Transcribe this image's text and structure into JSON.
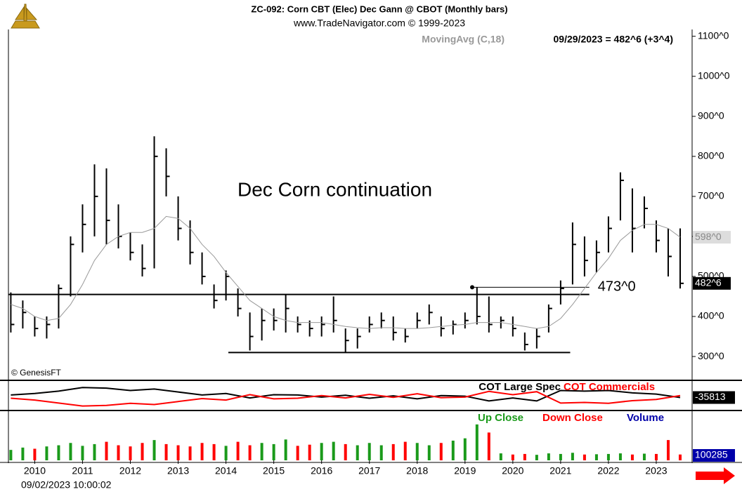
{
  "chart_data": [
    {
      "type": "ohlc",
      "title": "ZC-092:  Corn CBT (Elec) Dec Gann @ CBOT  (Monthly bars)",
      "subtitle": "www.TradeNavigator.com © 1999-2023",
      "quote": "09/29/2023 = 482^6 (+3^4)",
      "annotation": "Dec Corn continuation",
      "credit": "© GenesisFT",
      "timestamp": "09/02/2023 10:00:02",
      "color": "#000000",
      "x": [
        2009.5,
        2009.75,
        2010,
        2010.25,
        2010.5,
        2010.75,
        2011,
        2011.25,
        2011.5,
        2011.75,
        2012,
        2012.25,
        2012.5,
        2012.75,
        2013,
        2013.25,
        2013.5,
        2013.75,
        2014,
        2014.25,
        2014.5,
        2014.75,
        2015,
        2015.25,
        2015.5,
        2015.75,
        2016,
        2016.25,
        2016.5,
        2016.75,
        2017,
        2017.25,
        2017.5,
        2017.75,
        2018,
        2018.25,
        2018.5,
        2018.75,
        2019,
        2019.25,
        2019.5,
        2019.75,
        2020,
        2020.25,
        2020.5,
        2020.75,
        2021,
        2021.25,
        2021.5,
        2021.75,
        2022,
        2022.25,
        2022.5,
        2022.75,
        2023,
        2023.25,
        2023.5
      ],
      "high": [
        460,
        440,
        400,
        400,
        480,
        600,
        680,
        780,
        770,
        680,
        610,
        580,
        850,
        820,
        700,
        640,
        560,
        480,
        515,
        470,
        410,
        420,
        420,
        455,
        400,
        390,
        400,
        450,
        370,
        370,
        400,
        410,
        400,
        370,
        410,
        430,
        400,
        390,
        410,
        473,
        450,
        400,
        400,
        360,
        370,
        430,
        490,
        635,
        600,
        590,
        650,
        760,
        720,
        700,
        640,
        620,
        620
      ],
      "low": [
        360,
        370,
        350,
        345,
        370,
        450,
        560,
        600,
        580,
        570,
        540,
        500,
        520,
        700,
        590,
        530,
        480,
        420,
        440,
        400,
        315,
        340,
        365,
        360,
        360,
        350,
        350,
        360,
        310,
        320,
        360,
        370,
        340,
        335,
        370,
        380,
        350,
        355,
        370,
        380,
        360,
        370,
        350,
        315,
        320,
        360,
        430,
        480,
        500,
        510,
        560,
        640,
        560,
        620,
        560,
        500,
        470
      ],
      "close": [
        380,
        410,
        370,
        380,
        470,
        580,
        630,
        700,
        640,
        600,
        560,
        520,
        800,
        750,
        620,
        560,
        500,
        440,
        500,
        420,
        350,
        390,
        390,
        420,
        380,
        370,
        380,
        390,
        340,
        350,
        380,
        390,
        360,
        350,
        390,
        410,
        370,
        380,
        390,
        400,
        380,
        390,
        370,
        330,
        350,
        420,
        470,
        580,
        540,
        560,
        620,
        740,
        620,
        670,
        590,
        550,
        482.75
      ],
      "moving_average": {
        "name": "MovingAvg (C,18)",
        "color": "#999999",
        "values": [
          430,
          420,
          400,
          390,
          395,
          430,
          480,
          540,
          580,
          600,
          610,
          610,
          620,
          650,
          645,
          620,
          580,
          550,
          510,
          475,
          440,
          420,
          400,
          390,
          385,
          385,
          385,
          380,
          375,
          372,
          370,
          372,
          372,
          370,
          370,
          372,
          375,
          378,
          380,
          385,
          385,
          385,
          380,
          375,
          370,
          375,
          395,
          430,
          470,
          510,
          545,
          590,
          615,
          630,
          630,
          620,
          598
        ]
      },
      "levels": [
        {
          "value": 455,
          "x": [
            2009.45,
            2021.6
          ]
        },
        {
          "value": 310,
          "x": [
            2014.05,
            2021.2
          ]
        },
        {
          "value": 473,
          "x": [
            2019.15,
            2021.6
          ],
          "label": "473^0"
        }
      ],
      "ma_marker": {
        "value": 598,
        "label": "598^0"
      },
      "last_marker": {
        "value": 482.75,
        "label": "482^6"
      },
      "xlim": [
        2009.45,
        2023.75
      ],
      "xticks": [
        2010,
        2011,
        2012,
        2013,
        2014,
        2015,
        2016,
        2017,
        2018,
        2019,
        2020,
        2021,
        2022,
        2023
      ],
      "ylim": [
        244,
        1117
      ],
      "yticks": [
        {
          "value": 300,
          "label": "300^0"
        },
        {
          "value": 400,
          "label": "400^0"
        },
        {
          "value": 500,
          "label": "500^0"
        },
        {
          "value": 600,
          "label": "600^0"
        },
        {
          "value": 700,
          "label": "700^0"
        },
        {
          "value": 800,
          "label": "800^0"
        },
        {
          "value": 900,
          "label": "900^0"
        },
        {
          "value": 1000,
          "label": "1000^0"
        },
        {
          "value": 1100,
          "label": "1100^0"
        }
      ]
    },
    {
      "type": "line",
      "x": [
        2009.5,
        2010,
        2010.5,
        2011,
        2011.5,
        2012,
        2012.5,
        2013,
        2013.5,
        2014,
        2014.5,
        2015,
        2015.5,
        2016,
        2016.5,
        2017,
        2017.5,
        2018,
        2018.5,
        2019,
        2019.5,
        2020,
        2020.5,
        2021,
        2021.5,
        2022,
        2022.5,
        2023,
        2023.5
      ],
      "ylim": [
        -400000,
        400000
      ],
      "series": [
        {
          "name": "COT Large Spec",
          "color": "#000000",
          "values": [
            50000,
            100000,
            180000,
            300000,
            280000,
            200000,
            250000,
            150000,
            50000,
            100000,
            -50000,
            60000,
            50000,
            -20000,
            40000,
            -60000,
            20000,
            -80000,
            30000,
            10000,
            -150000,
            -50000,
            -150000,
            200000,
            180000,
            200000,
            120000,
            80000,
            -35813
          ]
        },
        {
          "name": "COT Commercials",
          "color": "#ff0000",
          "values": [
            -60000,
            -120000,
            -220000,
            -320000,
            -300000,
            -230000,
            -270000,
            -170000,
            -70000,
            -120000,
            60000,
            -80000,
            -60000,
            30000,
            -50000,
            70000,
            -30000,
            90000,
            -40000,
            -20000,
            170000,
            60000,
            160000,
            -220000,
            -200000,
            -230000,
            -140000,
            -100000,
            30000
          ]
        }
      ]
    },
    {
      "type": "bar",
      "up_label": "Up Close",
      "down_label": "Down Close",
      "title": "Volume",
      "up_color": "#1a9a1a",
      "down_color": "#ff0000",
      "title_color": "#0000aa",
      "ylim": [
        0,
        800000
      ],
      "values": [
        180000,
        220000,
        200000,
        240000,
        260000,
        300000,
        250000,
        280000,
        320000,
        260000,
        240000,
        300000,
        350000,
        280000,
        260000,
        240000,
        300000,
        280000,
        250000,
        320000,
        260000,
        300000,
        280000,
        360000,
        250000,
        270000,
        300000,
        320000,
        280000,
        260000,
        300000,
        260000,
        280000,
        320000,
        300000,
        260000,
        300000,
        340000,
        380000,
        620000,
        480000,
        120000,
        100000,
        110000,
        95000,
        120000,
        110000,
        130000,
        100000,
        105000,
        110000,
        120000,
        100000,
        115000,
        110000,
        350000,
        100285
      ]
    }
  ]
}
